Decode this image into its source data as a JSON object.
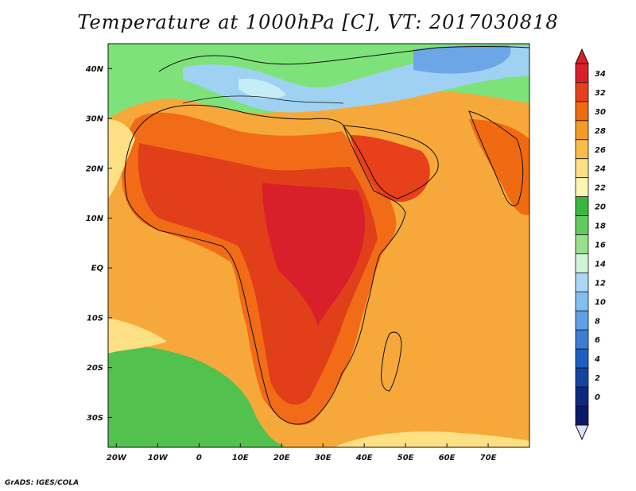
{
  "title": "Temperature at 1000hPa [C], VT: 2017030818",
  "credit": "GrADS: IGES/COLA",
  "map": {
    "lat_ticks": [
      "40N",
      "30N",
      "20N",
      "10N",
      "EQ",
      "10S",
      "20S",
      "30S"
    ],
    "lon_ticks": [
      "20W",
      "10W",
      "0",
      "10E",
      "20E",
      "30E",
      "40E",
      "50E",
      "60E",
      "70E"
    ],
    "lon_range": [
      -22,
      80
    ],
    "lat_range": [
      -36,
      45
    ]
  },
  "colorbar": {
    "labels": [
      "34",
      "32",
      "30",
      "28",
      "26",
      "24",
      "22",
      "20",
      "18",
      "16",
      "14",
      "12",
      "10",
      "8",
      "6",
      "4",
      "2",
      "0"
    ],
    "colors": [
      "#d8202a",
      "#e8401b",
      "#f06a12",
      "#f59a22",
      "#f7bd45",
      "#fde083",
      "#fbf6b4",
      "#37b83c",
      "#62cb5d",
      "#96e189",
      "#d2f4d6",
      "#aad7f5",
      "#82bff0",
      "#5ea1e6",
      "#3a7fd6",
      "#1f5ec1",
      "#1543a3",
      "#0b2a7e",
      "#0a186a"
    ],
    "overflow_high": "#d8202a",
    "overflow_low": "#e0e0ff"
  }
}
